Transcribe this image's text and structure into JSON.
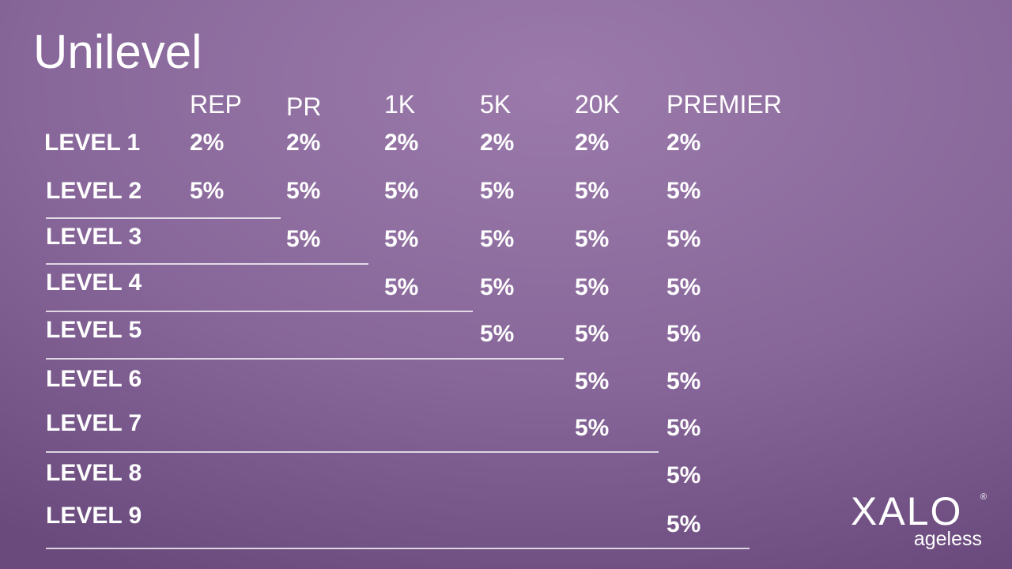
{
  "title": "Unilevel",
  "table": {
    "headers": [
      "REP",
      "PR",
      "1K",
      "5K",
      "20K",
      "PREMIER"
    ],
    "rows": [
      {
        "label": "LEVEL 1",
        "cells": [
          "2%",
          "2%",
          "2%",
          "2%",
          "2%",
          "2%"
        ]
      },
      {
        "label": "LEVEL 2",
        "cells": [
          "5%",
          "5%",
          "5%",
          "5%",
          "5%",
          "5%"
        ]
      },
      {
        "label": "LEVEL 3",
        "cells": [
          "5%",
          "5%",
          "5%",
          "5%",
          "5%"
        ]
      },
      {
        "label": "LEVEL 4",
        "cells": [
          "5%",
          "5%",
          "5%",
          "5%"
        ]
      },
      {
        "label": "LEVEL 5",
        "cells": [
          "5%",
          "5%",
          "5%"
        ]
      },
      {
        "label": "LEVEL 6",
        "cells": [
          "5%",
          "5%"
        ]
      },
      {
        "label": "LEVEL 7",
        "cells": [
          "5%",
          "5%"
        ]
      },
      {
        "label": "LEVEL 8",
        "cells": [
          "5%"
        ]
      },
      {
        "label": "LEVEL 9",
        "cells": [
          "5%"
        ]
      }
    ]
  },
  "logo": {
    "name": "XALO",
    "mark": "®",
    "tagline": "ageless"
  }
}
